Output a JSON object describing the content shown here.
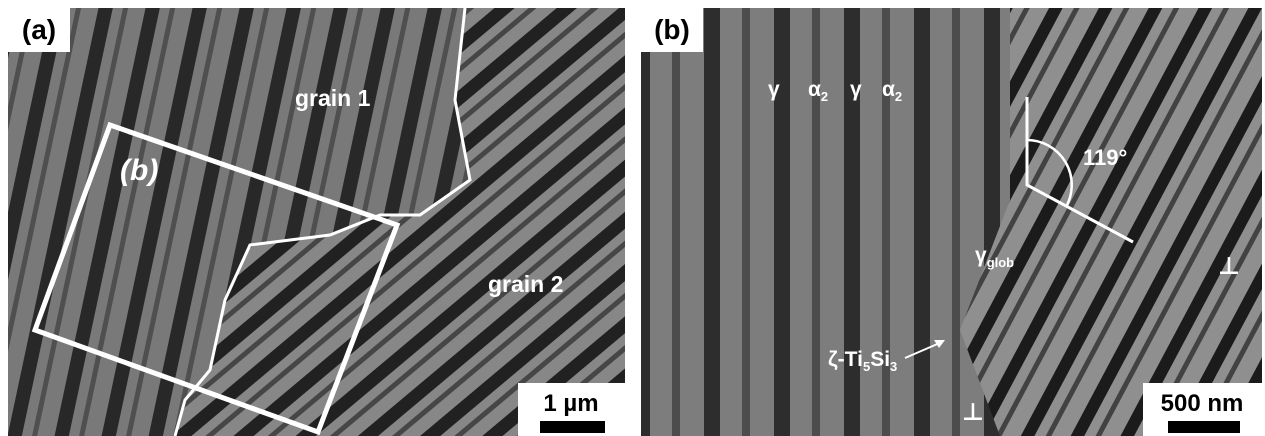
{
  "panels": [
    {
      "label": "(a)",
      "inset_label": "(b)",
      "grain_labels": [
        "grain 1",
        "grain 2"
      ],
      "scale_bar": "1 µm"
    },
    {
      "label": "(b)",
      "phase_labels": [
        {
          "base": "γ"
        },
        {
          "base": "α",
          "sub": "2"
        },
        {
          "base": "γ"
        },
        {
          "base": "α",
          "sub": "2"
        }
      ],
      "gamma_glob": {
        "base": "γ",
        "sub": "glob"
      },
      "precipitate": [
        {
          "base": "ζ-Ti",
          "sub": "5"
        },
        {
          "base": "Si",
          "sub": "3"
        }
      ],
      "angle": "119°",
      "dislocation_marks": [
        "⊥",
        "⊥"
      ],
      "scale_bar": "500 nm"
    }
  ]
}
